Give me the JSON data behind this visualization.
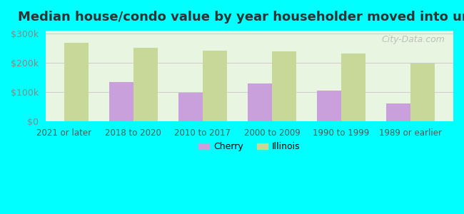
{
  "title": "Median house/condo value by year householder moved into unit",
  "categories": [
    "2021 or later",
    "2018 to 2020",
    "2010 to 2017",
    "2000 to 2009",
    "1990 to 1999",
    "1989 or earlier"
  ],
  "cherry_values": [
    null,
    135000,
    97000,
    130000,
    105000,
    62000
  ],
  "illinois_values": [
    268000,
    252000,
    242000,
    240000,
    232000,
    198000
  ],
  "cherry_color": "#c9a0dc",
  "illinois_color": "#c8d898",
  "background_color": "#00ffff",
  "plot_bg_start": "#e8f5e0",
  "plot_bg_end": "#f8fff8",
  "ylim": [
    0,
    310000
  ],
  "yticks": [
    0,
    100000,
    200000,
    300000
  ],
  "ytick_labels": [
    "$0",
    "$100k",
    "$200k",
    "$300k"
  ],
  "bar_width": 0.35,
  "legend_labels": [
    "Cherry",
    "Illinois"
  ],
  "watermark": "City-Data.com"
}
